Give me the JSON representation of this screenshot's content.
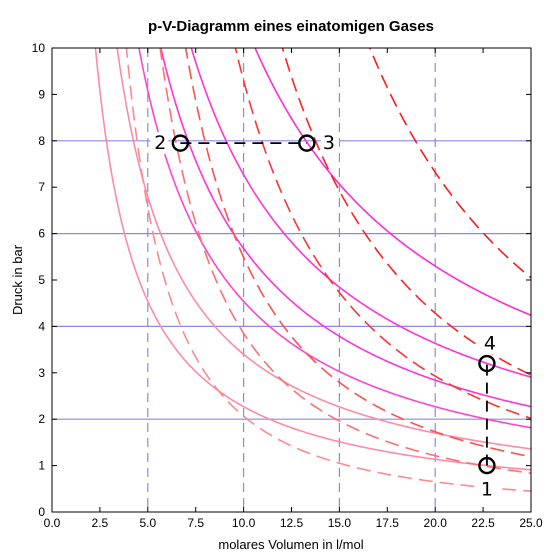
{
  "chart_data": {
    "type": "line",
    "title": "p-V-Diagramm eines einatomigen Gases",
    "xlabel": "molares Volumen in l/mol",
    "ylabel": "Druck in bar",
    "xlim": [
      0,
      25
    ],
    "ylim": [
      0,
      10
    ],
    "x_ticks": [
      "0.0",
      "2.5",
      "5.0",
      "7.5",
      "10.0",
      "12.5",
      "15.0",
      "17.5",
      "20.0",
      "22.5",
      "25.0"
    ],
    "y_ticks": [
      "0",
      "1",
      "2",
      "3",
      "4",
      "5",
      "6",
      "7",
      "8",
      "9",
      "10"
    ],
    "grid": {
      "x_at": [
        5,
        10,
        15,
        20
      ],
      "y_at": [
        2,
        4,
        6,
        8
      ],
      "color": "#8a8ae6"
    },
    "colors": {
      "isotherm_low": "#ff8aa8",
      "isotherm_high": "#ff2bd4",
      "adiabat_light": "#ff7777",
      "adiabat_dark": "#ff1a1a"
    },
    "isotherms": [
      {
        "pV": 22.7,
        "color": "#ff8aa8"
      },
      {
        "pV": 34,
        "color": "#ff8aa8"
      },
      {
        "pV": 45.4,
        "color": "#ff44cc"
      },
      {
        "pV": 56.8,
        "color": "#ff33d6"
      },
      {
        "pV": 72.7,
        "color": "#ff33d6"
      },
      {
        "pV": 106,
        "color": "#ff2bd4"
      }
    ],
    "adiabats": [
      {
        "K": 96,
        "gamma": 1.667,
        "color": "#ff8a8a"
      },
      {
        "K": 179,
        "gamma": 1.667,
        "color": "#ff7070"
      },
      {
        "K": 255,
        "gamma": 1.667,
        "color": "#ff5050"
      },
      {
        "K": 432,
        "gamma": 1.667,
        "color": "#ff3333"
      },
      {
        "K": 632,
        "gamma": 1.667,
        "color": "#ff2222"
      },
      {
        "K": 1080,
        "gamma": 1.667,
        "color": "#ff1a1a"
      }
    ],
    "points": [
      {
        "label": "1",
        "x": 22.7,
        "y": 1.0
      },
      {
        "label": "2",
        "x": 6.7,
        "y": 7.95
      },
      {
        "label": "3",
        "x": 13.3,
        "y": 7.95
      },
      {
        "label": "4",
        "x": 22.7,
        "y": 3.2
      }
    ],
    "connectors": [
      {
        "from": "2",
        "to": "3",
        "style": "dashed",
        "color": "#000000"
      },
      {
        "from": "1",
        "to": "4",
        "style": "dashed",
        "color": "#000000"
      }
    ]
  }
}
